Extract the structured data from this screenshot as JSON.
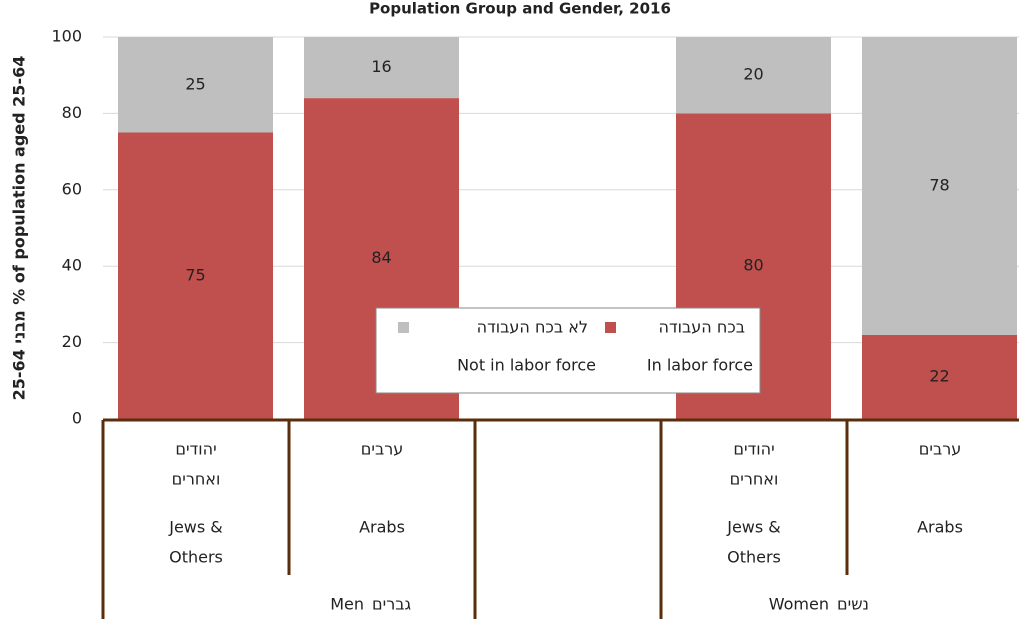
{
  "chart_data": {
    "type": "stacked_bar",
    "title": "Population Group and Gender, 2016",
    "y_label": "מבני 25-64 % of population aged 25-64",
    "categories": [
      [
        "Jews &",
        "Others"
      ],
      [
        "Arabs"
      ],
      null,
      [
        "Jews &",
        "Others"
      ],
      [
        "Arabs"
      ]
    ],
    "categories_he": [
      [
        "יהודים",
        "ואחרים"
      ],
      [
        "ערבים"
      ],
      null,
      [
        "יהודים",
        "ואחרים"
      ],
      [
        "ערבים"
      ]
    ],
    "groups": [
      {
        "name": "Men",
        "name_he": "גברים"
      },
      {
        "name": "Women",
        "name_he": "נשים"
      }
    ],
    "series": [
      {
        "name": "In labor force",
        "name_he": "בכח העבודה",
        "color": "#c0504d",
        "values": [
          75,
          84,
          null,
          80,
          22
        ]
      },
      {
        "name": "Not in labor force",
        "name_he": "לא בכח העבודה",
        "color": "#bfbfbf",
        "values": [
          25,
          16,
          null,
          20,
          78
        ]
      }
    ],
    "ylim": [
      0,
      100
    ],
    "yticks": [
      0,
      20,
      40,
      60,
      80,
      100
    ],
    "grid": true
  }
}
